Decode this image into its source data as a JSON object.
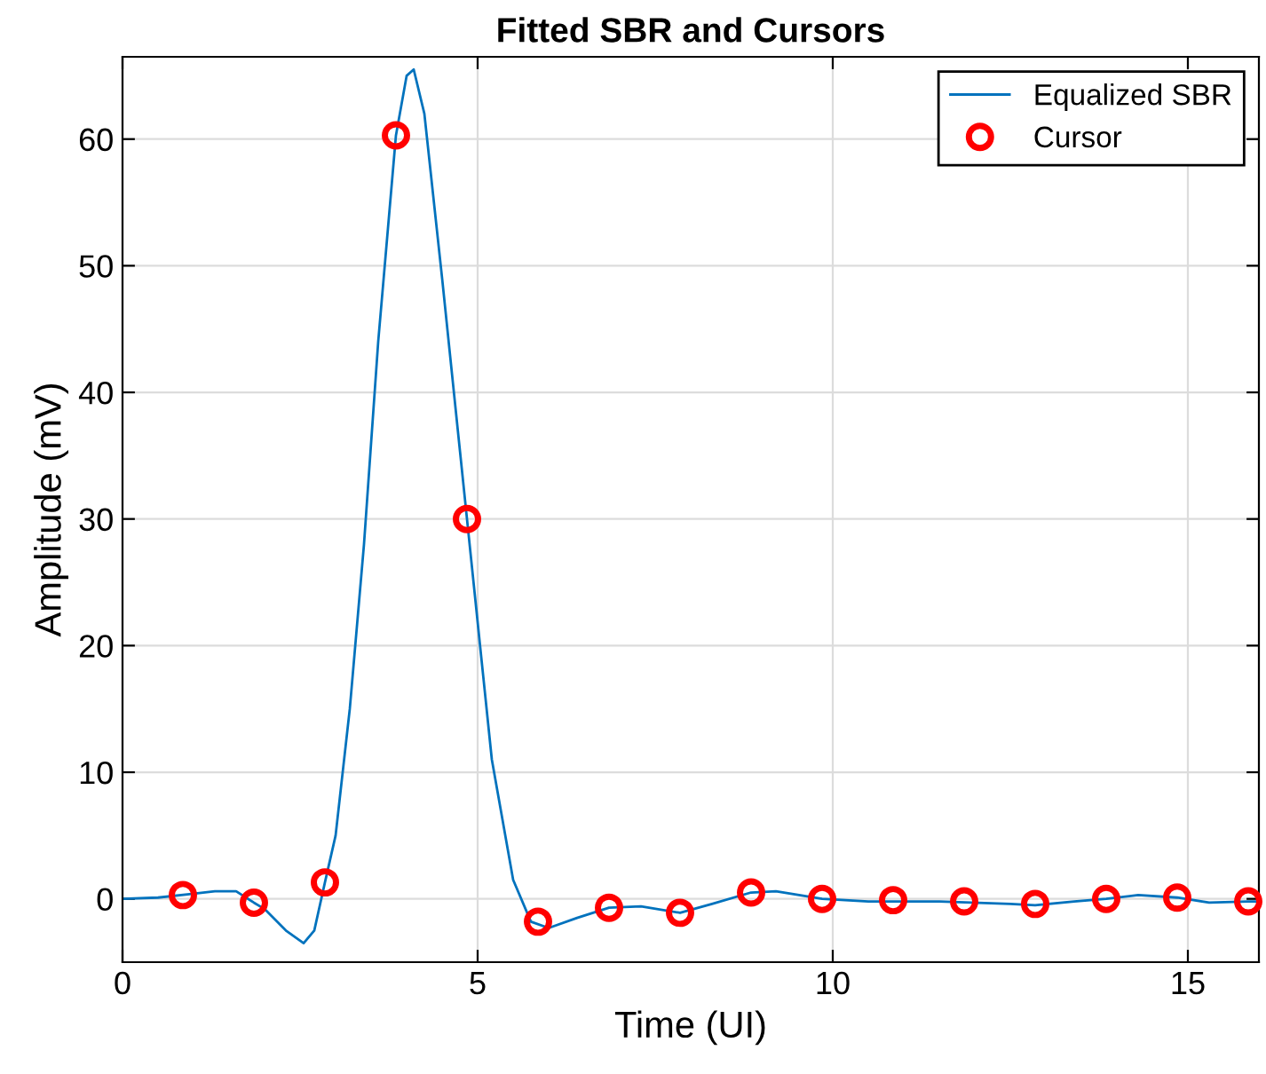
{
  "chart_data": {
    "type": "line",
    "title": "Fitted SBR and Cursors",
    "xlabel": "Time (UI)",
    "ylabel": "Amplitude (mV)",
    "xlim": [
      0,
      16
    ],
    "xticks": [
      0,
      5,
      10,
      15
    ],
    "ylim": [
      -5,
      66.5
    ],
    "yticks": [
      0,
      10,
      20,
      30,
      40,
      50,
      60
    ],
    "grid": true,
    "legend": "top right",
    "series": [
      {
        "name": "Equalized SBR",
        "color": "#0072bd",
        "marker": "none",
        "line_style": "solid",
        "x": [
          0,
          0.5,
          1,
          1.3,
          1.6,
          1.85,
          2,
          2.3,
          2.55,
          2.7,
          2.85,
          3,
          3.2,
          3.4,
          3.6,
          3.85,
          4.0,
          4.1,
          4.25,
          4.5,
          4.85,
          5.2,
          5.5,
          5.75,
          6,
          6.4,
          6.85,
          7.3,
          7.85,
          8.3,
          8.85,
          9.2,
          9.85,
          10.5,
          11.5,
          12.5,
          12.85,
          13.4,
          13.85,
          14.3,
          14.85,
          15.3,
          15.85,
          16
        ],
        "values": [
          0,
          0.1,
          0.4,
          0.6,
          0.6,
          -0.3,
          -0.8,
          -2.5,
          -3.5,
          -2.5,
          1.3,
          5,
          15,
          28,
          44,
          60.3,
          65,
          65.5,
          62,
          49,
          30,
          11,
          1.5,
          -1.8,
          -2.3,
          -1.5,
          -0.7,
          -0.6,
          -1.1,
          -0.4,
          0.5,
          0.6,
          0,
          -0.2,
          -0.2,
          -0.4,
          -0.5,
          -0.2,
          0,
          0.3,
          0.1,
          -0.3,
          -0.2,
          -0.2
        ]
      },
      {
        "name": "Cursor",
        "type": "scatter",
        "color": "#ff0000",
        "marker": "circle",
        "x": [
          0.85,
          1.85,
          2.85,
          3.85,
          4.85,
          5.85,
          6.85,
          7.85,
          8.85,
          9.85,
          10.85,
          11.85,
          12.85,
          13.85,
          14.85,
          15.85
        ],
        "values": [
          0.3,
          -0.3,
          1.3,
          60.3,
          30,
          -1.8,
          -0.7,
          -1.1,
          0.5,
          0,
          -0.1,
          -0.2,
          -0.4,
          0,
          0.1,
          -0.2
        ]
      }
    ]
  }
}
